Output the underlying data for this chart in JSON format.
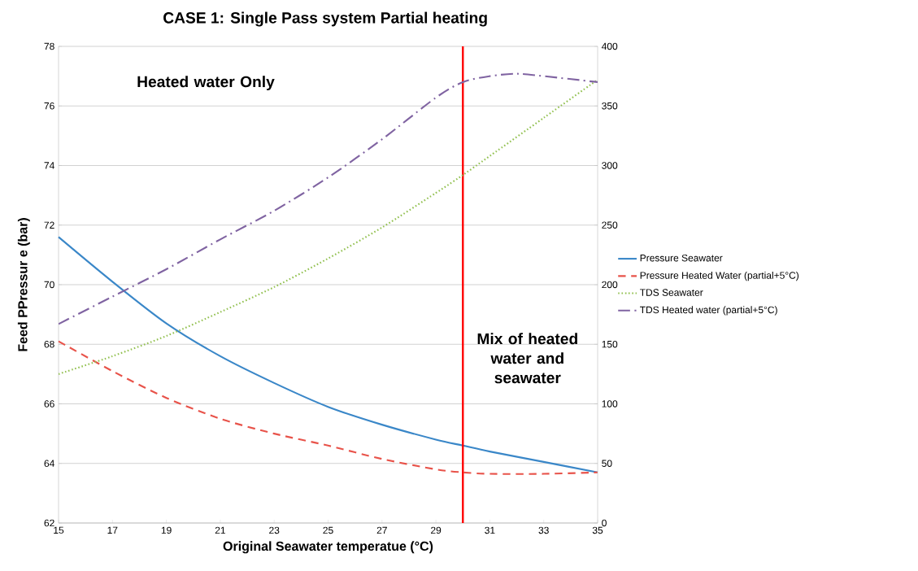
{
  "chart_data": {
    "type": "line",
    "title": "CASE 1: Single Pass system Partial heating",
    "xlabel": "Original Seawater temperatue (°C)",
    "ylabel": "Feed PPressur e (bar)",
    "xlim": [
      15,
      35
    ],
    "xticks": [
      15,
      17,
      19,
      21,
      23,
      25,
      27,
      29,
      31,
      33,
      35
    ],
    "ylim": [
      62,
      78
    ],
    "yticks": [
      62,
      64,
      66,
      68,
      70,
      72,
      74,
      76,
      78
    ],
    "y2lim": [
      0,
      400
    ],
    "y2ticks": [
      0,
      50,
      100,
      150,
      200,
      250,
      300,
      350,
      400
    ],
    "grid": "y",
    "legend": "right",
    "marker": "none",
    "series": [
      {
        "name": "Pressure Seawater",
        "color": "#3a87c8",
        "line_style": "solid",
        "x": [
          15,
          17,
          19,
          21,
          23,
          25,
          27,
          29,
          30,
          31,
          33,
          35
        ],
        "values": [
          71.6,
          70.1,
          68.7,
          67.6,
          66.7,
          65.9,
          65.3,
          64.8,
          64.6,
          64.4,
          64.05,
          63.7
        ]
      },
      {
        "name": "Pressure Heated Water (partial+5°C)",
        "color": "#e8534a",
        "line_style": "dashed",
        "x": [
          15,
          17,
          19,
          21,
          23,
          25,
          27,
          29,
          30,
          31,
          33,
          35
        ],
        "values": [
          68.1,
          67.1,
          66.2,
          65.5,
          65.0,
          64.6,
          64.15,
          63.8,
          63.7,
          63.65,
          63.65,
          63.7
        ]
      },
      {
        "name": "TDS Seawater",
        "color": "#92c050",
        "line_style": "dotted",
        "axis": "y2",
        "x": [
          15,
          17,
          19,
          21,
          23,
          25,
          27,
          29,
          30,
          31,
          33,
          35
        ],
        "values": [
          125,
          140,
          157,
          177,
          198,
          222,
          248,
          277,
          292,
          308,
          340,
          372
        ]
      },
      {
        "name": "TDS Heated water (partial+5°C)",
        "color": "#8064a2",
        "line_style": "dashdot",
        "axis": "y2",
        "x": [
          15,
          17,
          19,
          21,
          23,
          25,
          27,
          29,
          30,
          31,
          32,
          33,
          35
        ],
        "values": [
          167,
          190,
          213,
          238,
          262,
          290,
          322,
          357,
          370,
          375,
          377,
          375,
          370
        ]
      }
    ],
    "ref_lines": [
      {
        "axis": "x",
        "value": 30,
        "color": "#ff0000"
      }
    ],
    "annotations": [
      "Heated water Only",
      "Mix of heated water and seawater"
    ]
  }
}
